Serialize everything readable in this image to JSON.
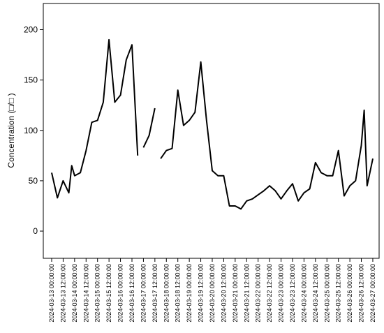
{
  "chart_data": {
    "type": "line",
    "y_label": "Concentration (□/□ )",
    "color": "#000000",
    "x": [
      "2024-03-13 00:00:00",
      "2024-03-13 06:00:00",
      "2024-03-13 12:00:00",
      "2024-03-13 18:00:00",
      "2024-03-13 21:00:00",
      "2024-03-14 00:00:00",
      "2024-03-14 06:00:00",
      "2024-03-14 12:00:00",
      "2024-03-14 18:00:00",
      "2024-03-15 00:00:00",
      "2024-03-15 06:00:00",
      "2024-03-15 12:00:00",
      "2024-03-15 18:00:00",
      "2024-03-16 00:00:00",
      "2024-03-16 06:00:00",
      "2024-03-16 12:00:00",
      "2024-03-16 18:00:00",
      "2024-03-16 21:00:00",
      "2024-03-17 00:00:00",
      "2024-03-17 06:00:00",
      "2024-03-17 12:00:00",
      "2024-03-17 15:00:00",
      "2024-03-17 18:00:00",
      "2024-03-18 00:00:00",
      "2024-03-18 06:00:00",
      "2024-03-18 12:00:00",
      "2024-03-18 18:00:00",
      "2024-03-19 00:00:00",
      "2024-03-19 06:00:00",
      "2024-03-19 12:00:00",
      "2024-03-19 18:00:00",
      "2024-03-20 00:00:00",
      "2024-03-20 06:00:00",
      "2024-03-20 12:00:00",
      "2024-03-20 18:00:00",
      "2024-03-21 00:00:00",
      "2024-03-21 06:00:00",
      "2024-03-21 12:00:00",
      "2024-03-21 18:00:00",
      "2024-03-22 00:00:00",
      "2024-03-22 06:00:00",
      "2024-03-22 12:00:00",
      "2024-03-22 18:00:00",
      "2024-03-23 00:00:00",
      "2024-03-23 06:00:00",
      "2024-03-23 12:00:00",
      "2024-03-23 18:00:00",
      "2024-03-24 00:00:00",
      "2024-03-24 06:00:00",
      "2024-03-24 12:00:00",
      "2024-03-24 18:00:00",
      "2024-03-25 00:00:00",
      "2024-03-25 06:00:00",
      "2024-03-25 12:00:00",
      "2024-03-25 18:00:00",
      "2024-03-26 00:00:00",
      "2024-03-26 06:00:00",
      "2024-03-26 12:00:00",
      "2024-03-26 15:00:00",
      "2024-03-26 18:00:00",
      "2024-03-27 00:00:00"
    ],
    "values": [
      58,
      33,
      50,
      38,
      65,
      55,
      58,
      80,
      108,
      110,
      128,
      190,
      128,
      135,
      170,
      185,
      75,
      null,
      83,
      95,
      122,
      null,
      72,
      80,
      82,
      140,
      105,
      110,
      118,
      168,
      110,
      60,
      55,
      55,
      25,
      25,
      22,
      30,
      32,
      36,
      40,
      45,
      40,
      32,
      40,
      47,
      30,
      38,
      42,
      68,
      58,
      55,
      55,
      80,
      35,
      45,
      50,
      85,
      120,
      45,
      72
    ],
    "xlim": [
      "2024-03-12 15:14:00",
      "2024-03-27 06:36:00"
    ],
    "xticks": [
      "2024-03-13 00:00:00",
      "2024-03-13 12:00:00",
      "2024-03-14 00:00:00",
      "2024-03-14 12:00:00",
      "2024-03-15 00:00:00",
      "2024-03-15 12:00:00",
      "2024-03-16 00:00:00",
      "2024-03-16 12:00:00",
      "2024-03-17 00:00:00",
      "2024-03-17 12:00:00",
      "2024-03-18 00:00:00",
      "2024-03-18 12:00:00",
      "2024-03-19 00:00:00",
      "2024-03-19 12:00:00",
      "2024-03-20 00:00:00",
      "2024-03-20 12:00:00",
      "2024-03-21 00:00:00",
      "2024-03-21 12:00:00",
      "2024-03-22 00:00:00",
      "2024-03-22 12:00:00",
      "2024-03-23 00:00:00",
      "2024-03-23 12:00:00",
      "2024-03-24 00:00:00",
      "2024-03-24 12:00:00",
      "2024-03-25 00:00:00",
      "2024-03-25 12:00:00",
      "2024-03-26 00:00:00",
      "2024-03-26 12:00:00",
      "2024-03-27 00:00:00"
    ],
    "ylim": [
      -27,
      226
    ],
    "yticks": [
      0,
      50,
      100,
      150,
      200
    ]
  }
}
